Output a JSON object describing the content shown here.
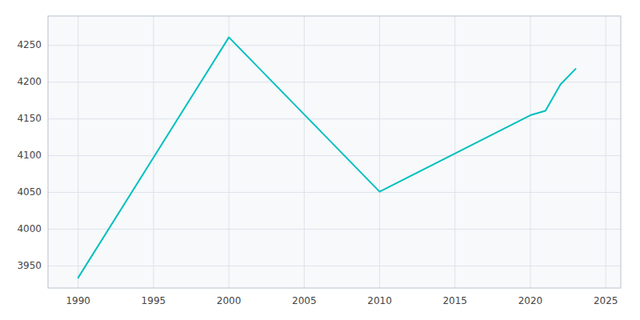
{
  "chart_data": {
    "type": "line",
    "x": [
      1990,
      2000,
      2010,
      2020,
      2021,
      2022,
      2023
    ],
    "values": [
      3934,
      4261,
      4051,
      4155,
      4161,
      4197,
      4218
    ],
    "color": "#00BFBF",
    "xlim": [
      1988,
      2026
    ],
    "ylim": [
      3920,
      4290
    ],
    "xticks": [
      1990,
      1995,
      2000,
      2005,
      2010,
      2015,
      2020,
      2025
    ],
    "yticks": [
      3950,
      4000,
      4050,
      4100,
      4150,
      4200,
      4250
    ],
    "grid": true
  }
}
